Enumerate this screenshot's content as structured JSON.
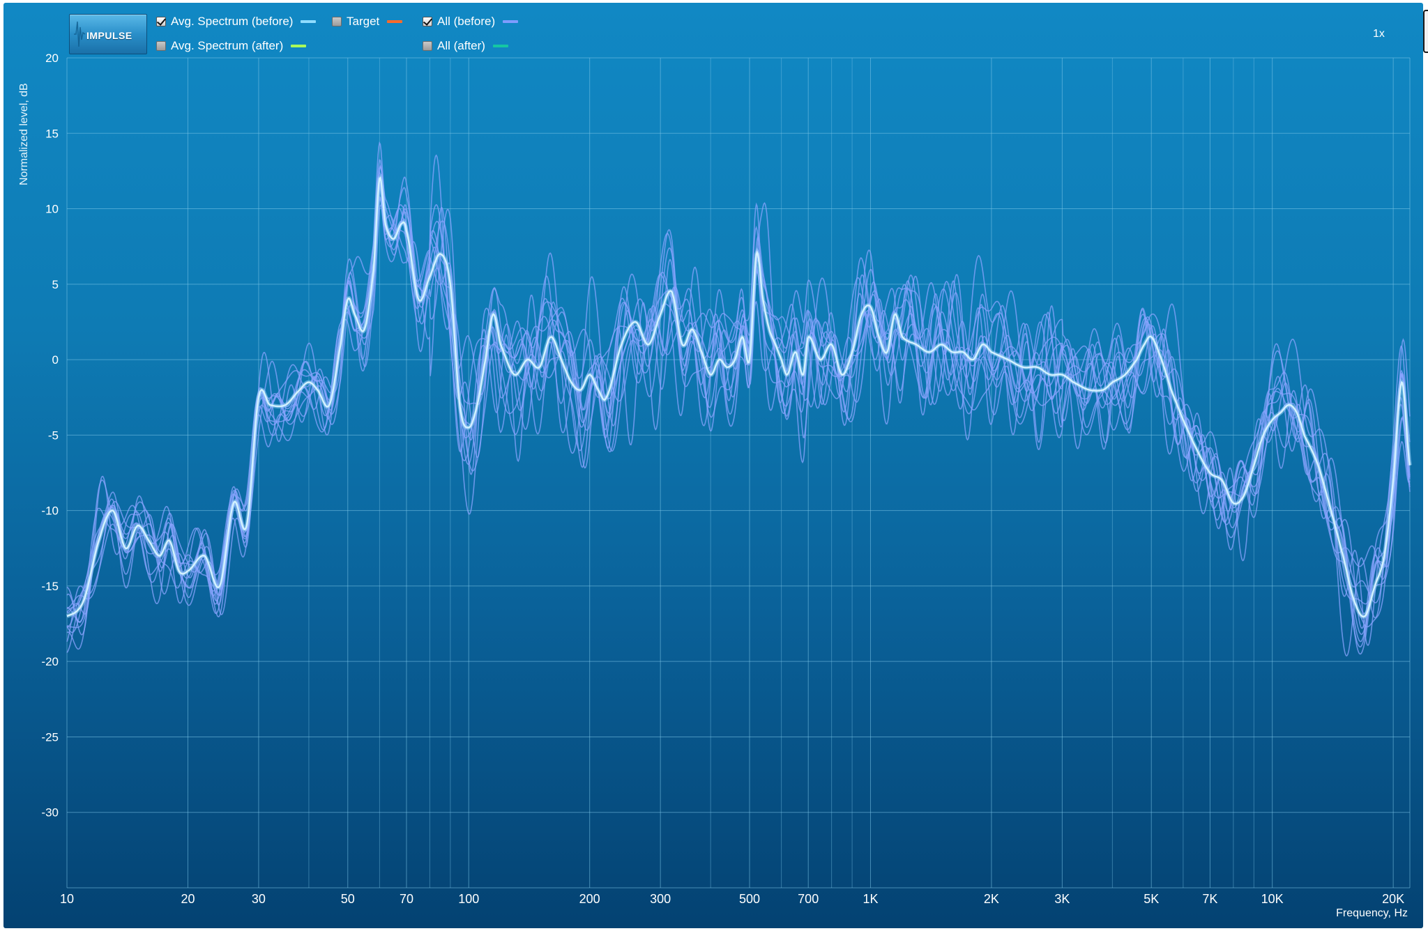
{
  "app": {
    "logo_text": "IMPULSE",
    "zoom": "1x"
  },
  "legend": [
    {
      "label": "Avg. Spectrum (before)",
      "checked": true,
      "color": "#8fdcff"
    },
    {
      "label": "Target",
      "checked": false,
      "color": "#ff6a2a"
    },
    {
      "label": "All (before)",
      "checked": true,
      "color": "#7f9cff"
    },
    {
      "label": "Avg. Spectrum (after)",
      "checked": false,
      "color": "#a8ff5a"
    },
    {
      "label": "All (after)",
      "checked": false,
      "color": "#15c7a3"
    }
  ],
  "colors": {
    "avg_before": "#d4f2ff",
    "all_before": "#8aa4ff",
    "grid": "#7ec6e8"
  },
  "chart_data": {
    "type": "line",
    "x_scale": "log",
    "xlim": [
      10,
      22000
    ],
    "ylim": [
      -35,
      20
    ],
    "xlabel": "Frequency, Hz",
    "ylabel": "Normalized level, dB",
    "x_ticks": [
      {
        "value": 10,
        "label": "10"
      },
      {
        "value": 20,
        "label": "20"
      },
      {
        "value": 30,
        "label": "30"
      },
      {
        "value": 50,
        "label": "50"
      },
      {
        "value": 70,
        "label": "70"
      },
      {
        "value": 100,
        "label": "100"
      },
      {
        "value": 200,
        "label": "200"
      },
      {
        "value": 300,
        "label": "300"
      },
      {
        "value": 500,
        "label": "500"
      },
      {
        "value": 700,
        "label": "700"
      },
      {
        "value": 1000,
        "label": "1K"
      },
      {
        "value": 2000,
        "label": "2K"
      },
      {
        "value": 3000,
        "label": "3K"
      },
      {
        "value": 5000,
        "label": "5K"
      },
      {
        "value": 7000,
        "label": "7K"
      },
      {
        "value": 10000,
        "label": "10K"
      },
      {
        "value": 20000,
        "label": "20K"
      }
    ],
    "minor_x_gridlines": [
      40,
      60,
      80,
      90,
      400,
      600,
      800,
      900,
      4000,
      6000,
      8000,
      9000
    ],
    "y_ticks": [
      {
        "value": 20,
        "label": "20"
      },
      {
        "value": 15,
        "label": "15"
      },
      {
        "value": 10,
        "label": "10"
      },
      {
        "value": 5,
        "label": "5"
      },
      {
        "value": 0,
        "label": "0"
      },
      {
        "value": -5,
        "label": "-5"
      },
      {
        "value": -10,
        "label": "-10"
      },
      {
        "value": -15,
        "label": "-15"
      },
      {
        "value": -20,
        "label": "-20"
      },
      {
        "value": -25,
        "label": "-25"
      },
      {
        "value": -30,
        "label": "-30"
      }
    ],
    "grid": true,
    "series": [
      {
        "name": "Avg. Spectrum (before)",
        "x": [
          10,
          11,
          12,
          13,
          14,
          15,
          16,
          17,
          18,
          19,
          20,
          22,
          24,
          26,
          28,
          30,
          32,
          35,
          38,
          40,
          42,
          45,
          48,
          50,
          52,
          55,
          58,
          60,
          62,
          65,
          68,
          70,
          75,
          80,
          85,
          90,
          95,
          100,
          105,
          110,
          115,
          120,
          130,
          140,
          150,
          160,
          170,
          180,
          190,
          200,
          210,
          220,
          240,
          260,
          280,
          300,
          320,
          340,
          360,
          380,
          400,
          420,
          440,
          460,
          480,
          500,
          520,
          540,
          560,
          580,
          600,
          620,
          650,
          680,
          700,
          750,
          800,
          850,
          900,
          950,
          1000,
          1050,
          1100,
          1150,
          1200,
          1300,
          1400,
          1500,
          1600,
          1700,
          1800,
          1900,
          2000,
          2200,
          2400,
          2600,
          2800,
          3000,
          3200,
          3500,
          3800,
          4000,
          4300,
          4600,
          4800,
          5000,
          5300,
          5600,
          6000,
          6500,
          7000,
          7500,
          8000,
          8500,
          9000,
          9500,
          10000,
          10500,
          11000,
          11500,
          12000,
          13000,
          14000,
          15000,
          16000,
          17000,
          18000,
          19000,
          20000,
          21000,
          22000
        ],
        "y": [
          -17,
          -16,
          -12,
          -10,
          -12.5,
          -11,
          -12,
          -13,
          -12,
          -14,
          -14,
          -13,
          -15,
          -9.5,
          -11,
          -2.5,
          -3,
          -3,
          -2,
          -1.5,
          -2,
          -3,
          1,
          4,
          3,
          2,
          6,
          12,
          9,
          8,
          9,
          8.5,
          4,
          5.5,
          7,
          5,
          -3,
          -4.5,
          -3,
          0,
          3,
          1,
          -1,
          0,
          -0.5,
          1.5,
          0,
          -1.5,
          -2,
          -1,
          -2,
          -2.5,
          1,
          2.5,
          1,
          3,
          4.5,
          1,
          2,
          0.5,
          -1,
          0,
          -0.5,
          0,
          1.5,
          0,
          7,
          4,
          2,
          1,
          0,
          -1,
          0.5,
          -1,
          1.5,
          0,
          1,
          -1,
          0.5,
          3,
          3.5,
          1.5,
          0.5,
          3,
          1.5,
          1,
          0.5,
          1,
          0.5,
          0.5,
          0,
          1,
          0.5,
          0,
          -0.5,
          -0.5,
          -1,
          -1,
          -1.5,
          -2,
          -2,
          -1.5,
          -1,
          0,
          1,
          1.5,
          0,
          -2,
          -4,
          -6,
          -7.5,
          -8,
          -9.5,
          -9,
          -7,
          -5,
          -4,
          -3.5,
          -3,
          -3.5,
          -5,
          -7,
          -10,
          -13,
          -16,
          -17,
          -15,
          -13,
          -8,
          -1.5,
          -7
        ]
      }
    ]
  }
}
